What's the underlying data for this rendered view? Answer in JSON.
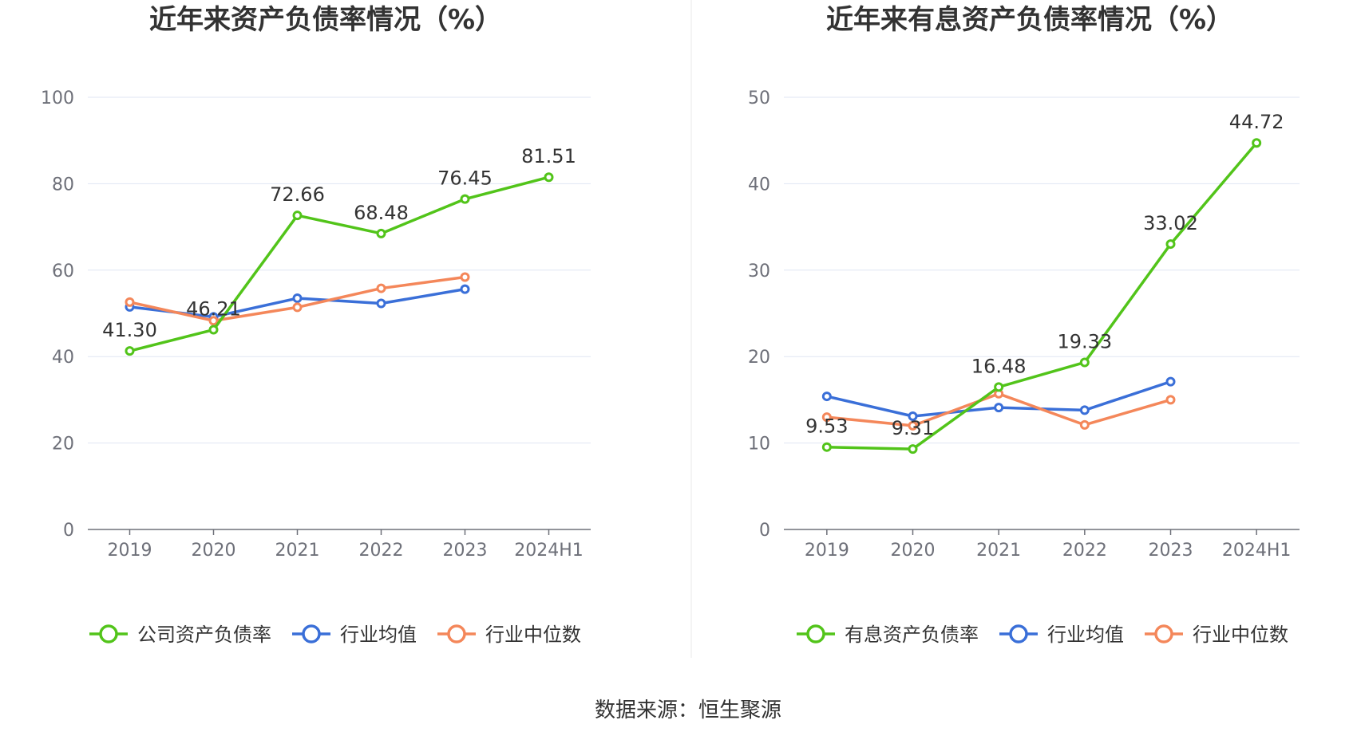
{
  "colors": {
    "company": "#52c41a",
    "industry_avg": "#3a6fd8",
    "industry_median": "#f4875a",
    "grid": "#dfe6f3",
    "axis": "#6e7079",
    "divider": "#e8e8e8"
  },
  "footer": "数据来源：恒生聚源",
  "chart_data": [
    {
      "type": "line",
      "title": "近年来资产负债率情况（%）",
      "categories": [
        "2019",
        "2020",
        "2021",
        "2022",
        "2023",
        "2024H1"
      ],
      "ylim": [
        0,
        100
      ],
      "yticks": [
        "0",
        "20",
        "40",
        "60",
        "80",
        "100"
      ],
      "ytick_values": [
        0,
        20,
        40,
        60,
        80,
        100
      ],
      "series": [
        {
          "key": "company",
          "name": "公司资产负债率",
          "values": [
            41.3,
            46.21,
            72.66,
            68.48,
            76.45,
            81.51
          ],
          "labels": [
            "41.30",
            "46.21",
            "72.66",
            "68.48",
            "76.45",
            "81.51"
          ]
        },
        {
          "key": "industry_avg",
          "name": "行业均值",
          "values": [
            51.5,
            49.2,
            53.5,
            52.3,
            55.6,
            null
          ]
        },
        {
          "key": "industry_median",
          "name": "行业中位数",
          "values": [
            52.6,
            48.3,
            51.4,
            55.8,
            58.4,
            null
          ]
        }
      ],
      "legend_position": "bottom"
    },
    {
      "type": "line",
      "title": "近年来有息资产负债率情况（%）",
      "categories": [
        "2019",
        "2020",
        "2021",
        "2022",
        "2023",
        "2024H1"
      ],
      "ylim": [
        0,
        50
      ],
      "yticks": [
        "0",
        "10",
        "20",
        "30",
        "40",
        "50"
      ],
      "ytick_values": [
        0,
        10,
        20,
        30,
        40,
        50
      ],
      "series": [
        {
          "key": "company",
          "name": "有息资产负债率",
          "values": [
            9.53,
            9.31,
            16.48,
            19.33,
            33.02,
            44.72
          ],
          "labels": [
            "9.53",
            "9.31",
            "16.48",
            "19.33",
            "33.02",
            "44.72"
          ]
        },
        {
          "key": "industry_avg",
          "name": "行业均值",
          "values": [
            15.4,
            13.1,
            14.1,
            13.8,
            17.1,
            null
          ]
        },
        {
          "key": "industry_median",
          "name": "行业中位数",
          "values": [
            13.0,
            12.0,
            15.7,
            12.1,
            15.0,
            null
          ]
        }
      ],
      "legend_position": "bottom"
    }
  ]
}
